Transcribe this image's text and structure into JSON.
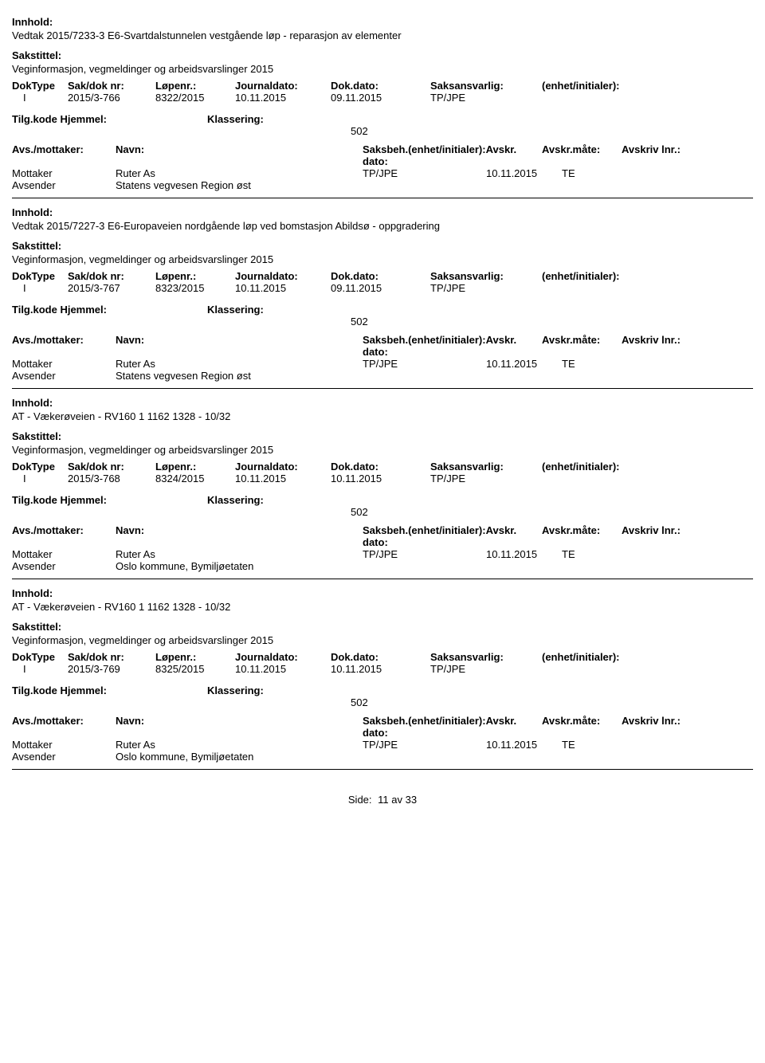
{
  "labels": {
    "innhold": "Innhold:",
    "sakstittel": "Sakstittel:",
    "doktype": "DokType",
    "sakdok": "Sak/dok nr:",
    "lopenr": "Løpenr.:",
    "journaldato": "Journaldato:",
    "dokdato": "Dok.dato:",
    "saksansvarlig": "Saksansvarlig:",
    "enhet_init": "(enhet/initialer):",
    "tilgkode": "Tilg.kode",
    "hjemmel": "Hjemmel:",
    "klassering": "Klassering:",
    "avs_mottaker": "Avs./mottaker:",
    "navn": "Navn:",
    "saksbeh": "Saksbeh.",
    "saksbeh_enhet": "(enhet/initialer):",
    "avskr_dato": "Avskr. dato:",
    "avskr_mate": "Avskr.måte:",
    "avskriv_lnr": "Avskriv lnr.:",
    "mottaker": "Mottaker",
    "avsender": "Avsender",
    "side": "Side:",
    "av": "av"
  },
  "footer": {
    "page": "11",
    "total": "33"
  },
  "records": [
    {
      "innhold": "Vedtak 2015/7233-3 E6-Svartdalstunnelen vestgående løp - reparasjon av elementer",
      "sakstittel": "Veginformasjon, vegmeldinger og arbeidsvarslinger 2015",
      "doktype": "I",
      "sakdok": "2015/3-766",
      "lopenr": "8322/2015",
      "journaldato": "10.11.2015",
      "dokdato": "09.11.2015",
      "saksansvarlig": "TP/JPE",
      "klassering": "502",
      "mottaker_navn": "Ruter As",
      "avsender_navn": "Statens vegvesen Region øst",
      "saksbeh_val": "TP/JPE",
      "avskr_dato": "10.11.2015",
      "avskr_mate": "TE"
    },
    {
      "innhold": "Vedtak 2015/7227-3 E6-Europaveien nordgående løp ved bomstasjon Abildsø - oppgradering",
      "sakstittel": "Veginformasjon, vegmeldinger og arbeidsvarslinger 2015",
      "doktype": "I",
      "sakdok": "2015/3-767",
      "lopenr": "8323/2015",
      "journaldato": "10.11.2015",
      "dokdato": "09.11.2015",
      "saksansvarlig": "TP/JPE",
      "klassering": "502",
      "mottaker_navn": "Ruter As",
      "avsender_navn": "Statens vegvesen Region øst",
      "saksbeh_val": "TP/JPE",
      "avskr_dato": "10.11.2015",
      "avskr_mate": "TE"
    },
    {
      "innhold": "AT - Vækerøveien - RV160 1 1162 1328 - 10/32",
      "sakstittel": "Veginformasjon, vegmeldinger og arbeidsvarslinger 2015",
      "doktype": "I",
      "sakdok": "2015/3-768",
      "lopenr": "8324/2015",
      "journaldato": "10.11.2015",
      "dokdato": "10.11.2015",
      "saksansvarlig": "TP/JPE",
      "klassering": "502",
      "mottaker_navn": "Ruter As",
      "avsender_navn": "Oslo kommune, Bymiljøetaten",
      "saksbeh_val": "TP/JPE",
      "avskr_dato": "10.11.2015",
      "avskr_mate": "TE"
    },
    {
      "innhold": "AT - Vækerøveien - RV160 1 1162 1328 - 10/32",
      "sakstittel": "Veginformasjon, vegmeldinger og arbeidsvarslinger 2015",
      "doktype": "I",
      "sakdok": "2015/3-769",
      "lopenr": "8325/2015",
      "journaldato": "10.11.2015",
      "dokdato": "10.11.2015",
      "saksansvarlig": "TP/JPE",
      "klassering": "502",
      "mottaker_navn": "Ruter As",
      "avsender_navn": "Oslo kommune, Bymiljøetaten",
      "saksbeh_val": "TP/JPE",
      "avskr_dato": "10.11.2015",
      "avskr_mate": "TE"
    }
  ]
}
